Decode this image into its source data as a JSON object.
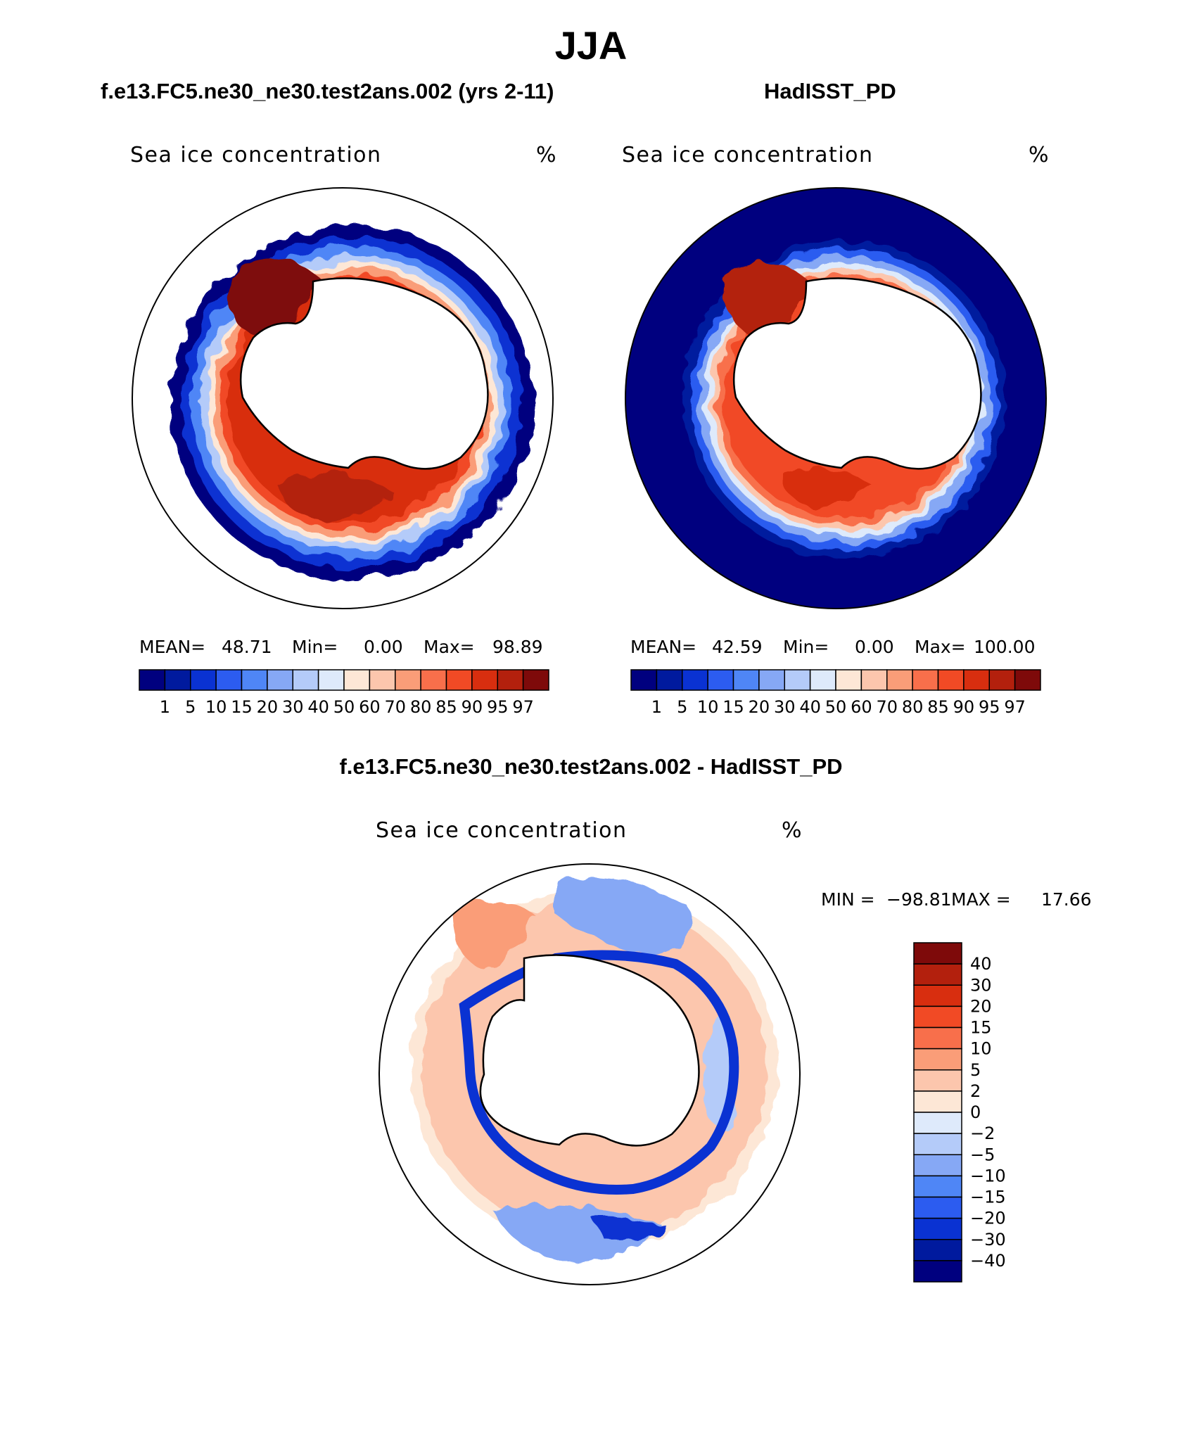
{
  "figure": {
    "season": "JJA",
    "units": "%"
  },
  "panels": [
    {
      "id": "model",
      "title": "f.e13.FC5.ne30_ne30.test2ans.002 (yrs 2-11)",
      "variable": "Sea ice concentration",
      "units": "%",
      "stats": {
        "mean_label": "MEAN=",
        "mean": "48.71",
        "min_label": "Min=",
        "min": "0.00",
        "max_label": "Max=",
        "max": "98.89"
      }
    },
    {
      "id": "obs",
      "title": "HadISST_PD",
      "variable": "Sea ice concentration",
      "units": "%",
      "stats": {
        "mean_label": "MEAN=",
        "mean": "42.59",
        "min_label": "Min=",
        "min": "0.00",
        "max_label": "Max=",
        "max": "100.00"
      }
    },
    {
      "id": "diff",
      "title": "f.e13.FC5.ne30_ne30.test2ans.002 - HadISST_PD",
      "variable": "Sea ice concentration",
      "units": "%",
      "stats": {
        "min_label": "MIN =",
        "min": "−98.81",
        "max_label": "MAX =",
        "max": "17.66"
      }
    }
  ],
  "abs_colorbar": {
    "labels": [
      "1",
      "5",
      "10",
      "15",
      "20",
      "30",
      "40",
      "50",
      "60",
      "70",
      "80",
      "85",
      "90",
      "95",
      "97"
    ],
    "colors": [
      "#00007f",
      "#001a9e",
      "#0a32d2",
      "#2c5cf0",
      "#4f86f6",
      "#86a8f5",
      "#b4cbf9",
      "#deeafb",
      "#fde7d6",
      "#fcc6ad",
      "#fa9d78",
      "#f86f4b",
      "#f14a25",
      "#d82e0f",
      "#b3200d",
      "#7e0a0a"
    ]
  },
  "diff_colorbar": {
    "labels": [
      "40",
      "30",
      "20",
      "15",
      "10",
      "5",
      "2",
      "0",
      "−2",
      "−5",
      "−10",
      "−15",
      "−20",
      "−30",
      "−40"
    ],
    "colors": [
      "#7e0a0a",
      "#b3200d",
      "#d82e0f",
      "#f14a25",
      "#f86f4b",
      "#fa9d78",
      "#fcc6ad",
      "#fde7d6",
      "#deeafb",
      "#b4cbf9",
      "#86a8f5",
      "#4f86f6",
      "#2c5cf0",
      "#0a32d2",
      "#001a9e",
      "#00007f"
    ]
  }
}
